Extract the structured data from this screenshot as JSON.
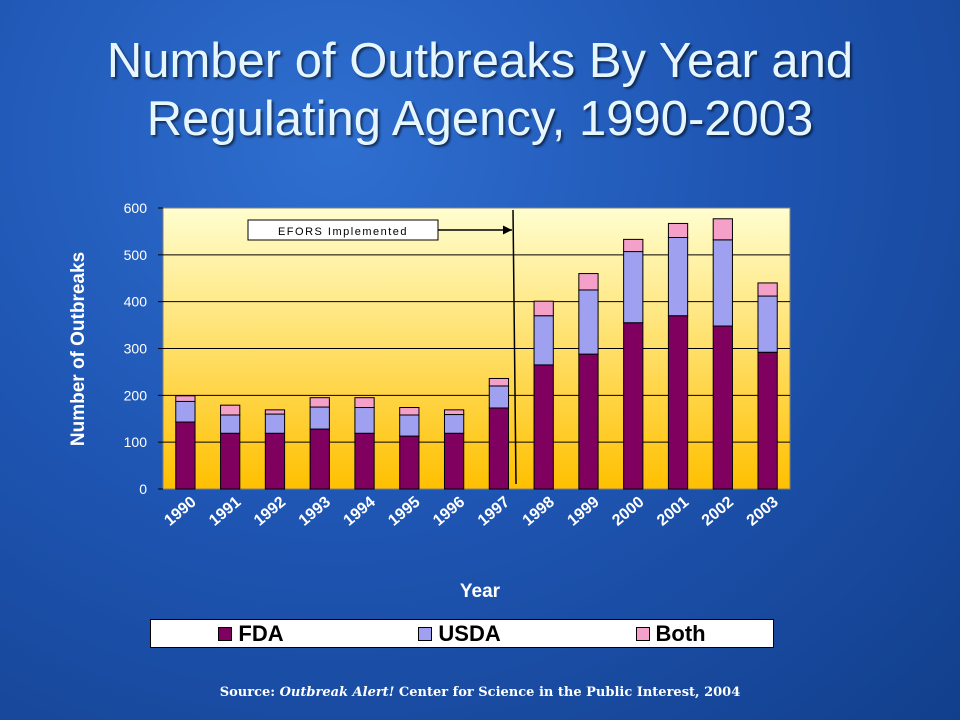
{
  "slide": {
    "title_line1": "Number of Outbreaks By Year and",
    "title_line2": "Regulating Agency, 1990-2003",
    "source_prefix": "Source: ",
    "source_title": "Outbreak Alert!",
    "source_suffix": " Center for Science in the Public Interest, 2004"
  },
  "colors": {
    "FDA": "#800060",
    "USDA": "#a0a0f0",
    "Both": "#f5a0c8",
    "plot_top": "#fffed0",
    "plot_bottom": "#ffc000"
  },
  "chart_data": {
    "type": "bar",
    "stacked": true,
    "title": "",
    "xlabel": "Year",
    "ylabel": "Number of Outbreaks",
    "ylim": [
      0,
      600
    ],
    "yticks": [
      0,
      100,
      200,
      300,
      400,
      500,
      600
    ],
    "categories": [
      "1990",
      "1991",
      "1992",
      "1993",
      "1994",
      "1995",
      "1996",
      "1997",
      "1998",
      "1999",
      "2000",
      "2001",
      "2002",
      "2003"
    ],
    "series": [
      {
        "name": "FDA",
        "values": [
          143,
          119,
          119,
          128,
          119,
          113,
          119,
          173,
          265,
          288,
          355,
          370,
          348,
          292
        ]
      },
      {
        "name": "USDA",
        "values": [
          44,
          39,
          41,
          47,
          55,
          45,
          40,
          47,
          105,
          137,
          152,
          167,
          184,
          120
        ]
      },
      {
        "name": "Both",
        "values": [
          12,
          21,
          9,
          20,
          21,
          16,
          10,
          16,
          31,
          35,
          26,
          30,
          45,
          28
        ]
      }
    ],
    "legend_position": "bottom",
    "grid": true,
    "annotation": {
      "text": "EFORS Implemented",
      "target_year_boundary": "1997-1998"
    }
  }
}
